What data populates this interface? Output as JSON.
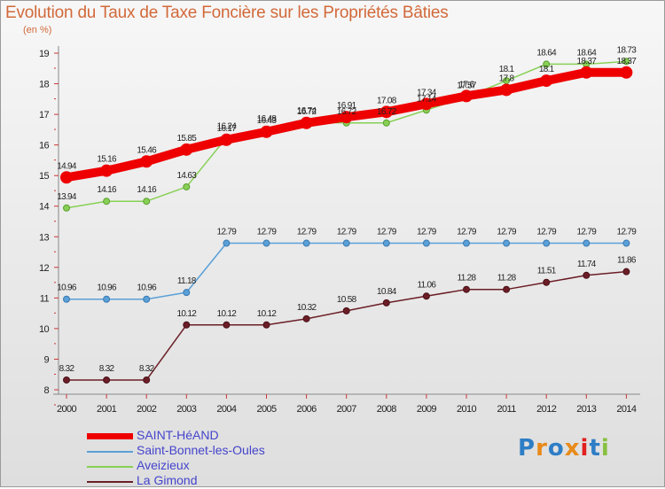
{
  "title": "Evolution du Taux de Taxe Foncière sur les Propriétés Bâties",
  "unit_label": "(en %)",
  "logo": {
    "text": "Proxiti"
  },
  "chart_data": {
    "type": "line",
    "title": "Evolution du Taux de Taxe Foncière sur les Propriétés Bâties",
    "ylabel": "(en %)",
    "xlabel": "",
    "ylim": [
      8,
      19
    ],
    "yticks": [
      8,
      9,
      10,
      11,
      12,
      13,
      14,
      15,
      16,
      17,
      18,
      19
    ],
    "grid": false,
    "legend_position": "bottom-left",
    "x": [
      "2000",
      "2001",
      "2002",
      "2003",
      "2004",
      "2005",
      "2006",
      "2007",
      "2008",
      "2009",
      "2010",
      "2011",
      "2012",
      "2013",
      "2014"
    ],
    "series": [
      {
        "name": "SAINT-HéAND",
        "color": "#ee0000",
        "values": [
          14.94,
          15.16,
          15.46,
          15.85,
          16.17,
          16.43,
          16.72,
          16.91,
          17.08,
          17.34,
          17.6,
          17.8,
          18.1,
          18.37,
          18.37
        ]
      },
      {
        "name": "Saint-Bonnet-les-Oules",
        "color": "#5aa0d8",
        "values": [
          10.96,
          10.96,
          10.96,
          11.18,
          12.79,
          12.79,
          12.79,
          12.79,
          12.79,
          12.79,
          12.79,
          12.79,
          12.79,
          12.79,
          12.79
        ]
      },
      {
        "name": "Aveizieux",
        "color": "#88d055",
        "values": [
          13.94,
          14.16,
          14.16,
          14.63,
          16.24,
          16.48,
          16.74,
          16.72,
          16.72,
          17.14,
          17.57,
          18.1,
          18.64,
          18.64,
          18.73
        ]
      },
      {
        "name": "La Gimond",
        "color": "#6b1e26",
        "values": [
          8.32,
          8.32,
          8.32,
          10.12,
          10.12,
          10.12,
          10.32,
          10.58,
          10.84,
          11.06,
          11.28,
          11.28,
          11.51,
          11.74,
          11.86
        ]
      }
    ],
    "point_labels": [
      [
        "14.94",
        "15.16",
        "15.46",
        "15.85",
        "16.17",
        "16.43",
        "16.72",
        "16.91",
        "17.08",
        "17.34",
        "17.6",
        "17.8",
        "18.1",
        "18.37",
        "18.37"
      ],
      [
        "10.96",
        "10.96",
        "10.96",
        "11.18",
        "12.79",
        "12.79",
        "12.79",
        "12.79",
        "12.79",
        "12.79",
        "12.79",
        "12.79",
        "12.79",
        "12.79",
        "12.79"
      ],
      [
        "13.94",
        "14.16",
        "14.16",
        "14.63",
        "16.24",
        "16.48",
        "16.74",
        "16.72",
        "16.72",
        "17.14",
        "17.57",
        "18.1",
        "18.64",
        "18.64",
        "18.73"
      ],
      [
        "8.32",
        "8.32",
        "8.32",
        "10.12",
        "10.12",
        "10.12",
        "10.32",
        "10.58",
        "10.84",
        "11.06",
        "11.28",
        "11.28",
        "11.51",
        "11.74",
        "11.86"
      ]
    ]
  }
}
